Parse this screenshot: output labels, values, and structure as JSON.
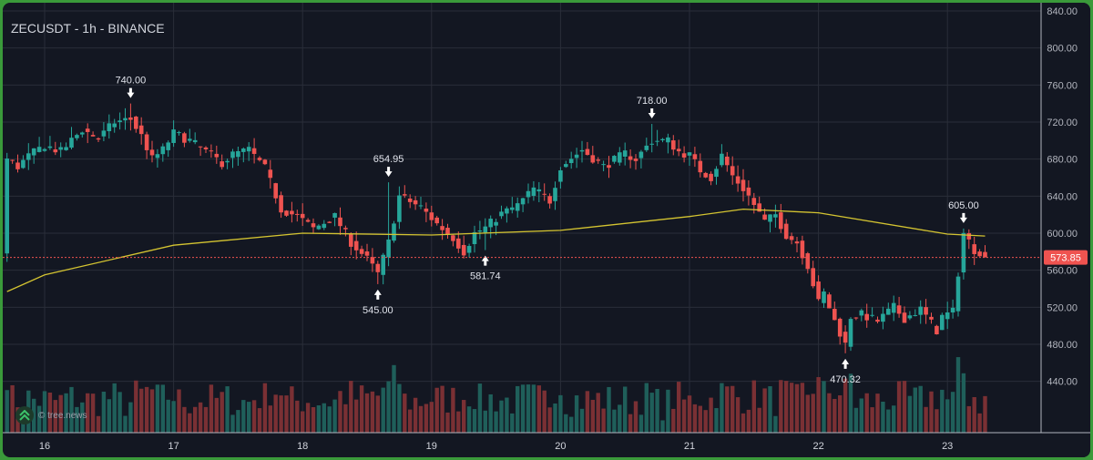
{
  "header": {
    "title": "ZECUSDT - 1h - BINANCE"
  },
  "watermark": {
    "text": "© tree.news"
  },
  "colors": {
    "up": "#26a69a",
    "down": "#ef5350",
    "ma": "#d4c431",
    "grid": "#2a2e39",
    "background": "#131722",
    "frame": "#3a9a3a"
  },
  "price_tag": {
    "value": "573.85"
  },
  "chart_data": {
    "type": "candlestick",
    "y_axis": {
      "min": 420,
      "max": 840,
      "ticks": [
        "840.00",
        "800.00",
        "760.00",
        "720.00",
        "680.00",
        "640.00",
        "600.00",
        "560.00",
        "520.00",
        "480.00",
        "440.00"
      ]
    },
    "x_axis": {
      "labels": [
        "16",
        "17",
        "18",
        "19",
        "20",
        "21",
        "22",
        "23"
      ],
      "label_hours": [
        0,
        24,
        48,
        72,
        96,
        120,
        144,
        168
      ]
    },
    "first_candle_hour": -7,
    "last_price": 573.85,
    "annotations": [
      {
        "label": "740.00",
        "hour": 16,
        "price": 740.0,
        "kind": "high"
      },
      {
        "label": "545.00",
        "hour": 62,
        "price": 545.0,
        "kind": "low"
      },
      {
        "label": "654.95",
        "hour": 64,
        "price": 654.95,
        "kind": "high"
      },
      {
        "label": "581.74",
        "hour": 82,
        "price": 581.74,
        "kind": "low"
      },
      {
        "label": "718.00",
        "hour": 113,
        "price": 718.0,
        "kind": "high"
      },
      {
        "label": "470.32",
        "hour": 149,
        "price": 470.32,
        "kind": "low"
      },
      {
        "label": "605.00",
        "hour": 171,
        "price": 605.0,
        "kind": "high"
      }
    ],
    "ma_series": {
      "hours": [
        -7,
        0,
        24,
        48,
        72,
        96,
        120,
        130,
        144,
        168,
        175
      ],
      "values": [
        537,
        555,
        587,
        600,
        598,
        603,
        618,
        626,
        622,
        599,
        597
      ]
    },
    "price_path": {
      "hours": [
        -7,
        -5,
        -3,
        0,
        3,
        7,
        10,
        13,
        16,
        18,
        20,
        22,
        24,
        27,
        30,
        33,
        35,
        38,
        41,
        44,
        47,
        50,
        54,
        57,
        60,
        62,
        64,
        66,
        70,
        73,
        76,
        78,
        80,
        82,
        85,
        88,
        91,
        94,
        96,
        100,
        104,
        108,
        110,
        113,
        116,
        118,
        120,
        122,
        124,
        126,
        128,
        130,
        131,
        134,
        136,
        138,
        140,
        142,
        144,
        145,
        147,
        149,
        150,
        152,
        155,
        158,
        160,
        163,
        166,
        167,
        169,
        171,
        173,
        175
      ],
      "values": [
        680,
        672,
        683,
        695,
        688,
        712,
        702,
        720,
        723,
        705,
        680,
        690,
        708,
        700,
        688,
        676,
        685,
        690,
        670,
        626,
        618,
        605,
        618,
        590,
        572,
        556,
        590,
        640,
        628,
        610,
        595,
        580,
        600,
        606,
        621,
        630,
        648,
        635,
        672,
        690,
        672,
        686,
        680,
        700,
        700,
        688,
        684,
        668,
        660,
        684,
        662,
        648,
        640,
        612,
        620,
        598,
        590,
        565,
        525,
        535,
        505,
        480,
        510,
        512,
        505,
        520,
        508,
        518,
        495,
        510,
        515,
        600,
        582,
        578
      ]
    },
    "volume_max": 100
  }
}
